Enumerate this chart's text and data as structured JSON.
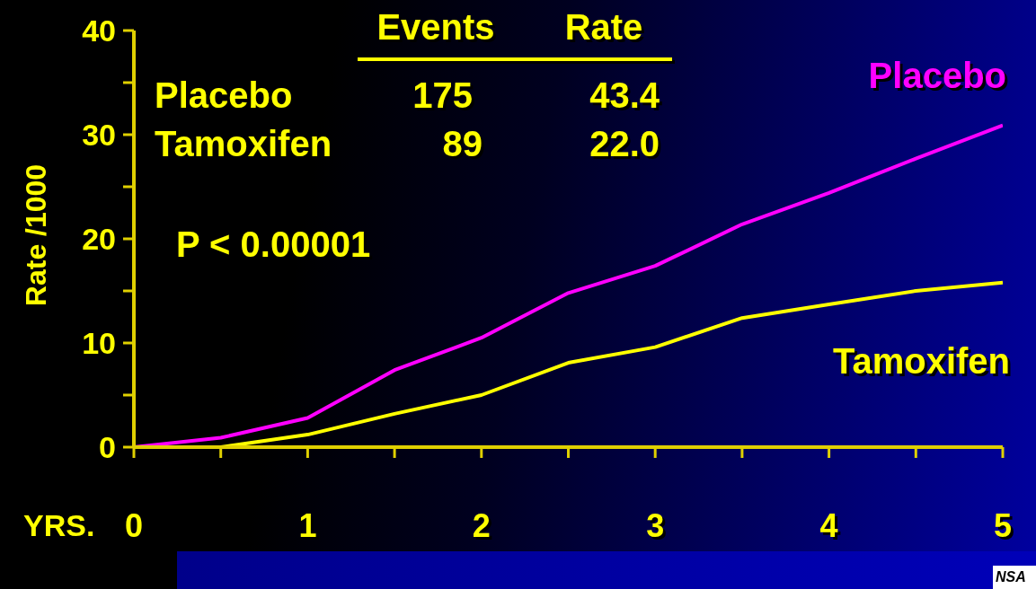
{
  "chart_data": {
    "type": "line",
    "xlabel": "YRS.",
    "ylabel": "Rate /1000",
    "x": [
      0,
      0.5,
      1,
      1.5,
      2,
      2.5,
      3,
      3.5,
      4,
      4.5,
      5
    ],
    "series": [
      {
        "name": "Placebo",
        "color": "#ff00ff",
        "values": [
          0,
          0.9,
          2.8,
          7.4,
          10.5,
          14.8,
          17.4,
          21.4,
          24.4,
          27.7,
          30.9
        ]
      },
      {
        "name": "Tamoxifen",
        "color": "#ffff00",
        "values": [
          0,
          0,
          1.2,
          3.2,
          5.0,
          8.1,
          9.6,
          12.4,
          13.7,
          15.0,
          15.8
        ]
      }
    ],
    "xlim": [
      0,
      5
    ],
    "xticks": [
      0,
      {
        "value": 0.5,
        "label": null
      },
      1,
      {
        "value": 1.5,
        "label": null
      },
      2,
      {
        "value": 2.5,
        "label": null
      },
      3,
      {
        "value": 3.5,
        "label": null
      },
      4,
      {
        "value": 4.5,
        "label": null
      },
      5
    ],
    "ylim": [
      0,
      40
    ],
    "yticks": [
      0,
      {
        "value": 5,
        "label": null
      },
      10,
      {
        "value": 15,
        "label": null
      },
      20,
      {
        "value": 25,
        "label": null
      },
      30,
      {
        "value": 35,
        "label": null
      },
      40
    ],
    "grid": false,
    "legend": false,
    "marker": "none",
    "line_style": "solid",
    "annotations": [
      "Events",
      "Rate",
      "Placebo",
      "175",
      "43.4",
      "Tamoxifen",
      "89",
      "22.0",
      "P < 0.00001",
      "NSA"
    ]
  }
}
